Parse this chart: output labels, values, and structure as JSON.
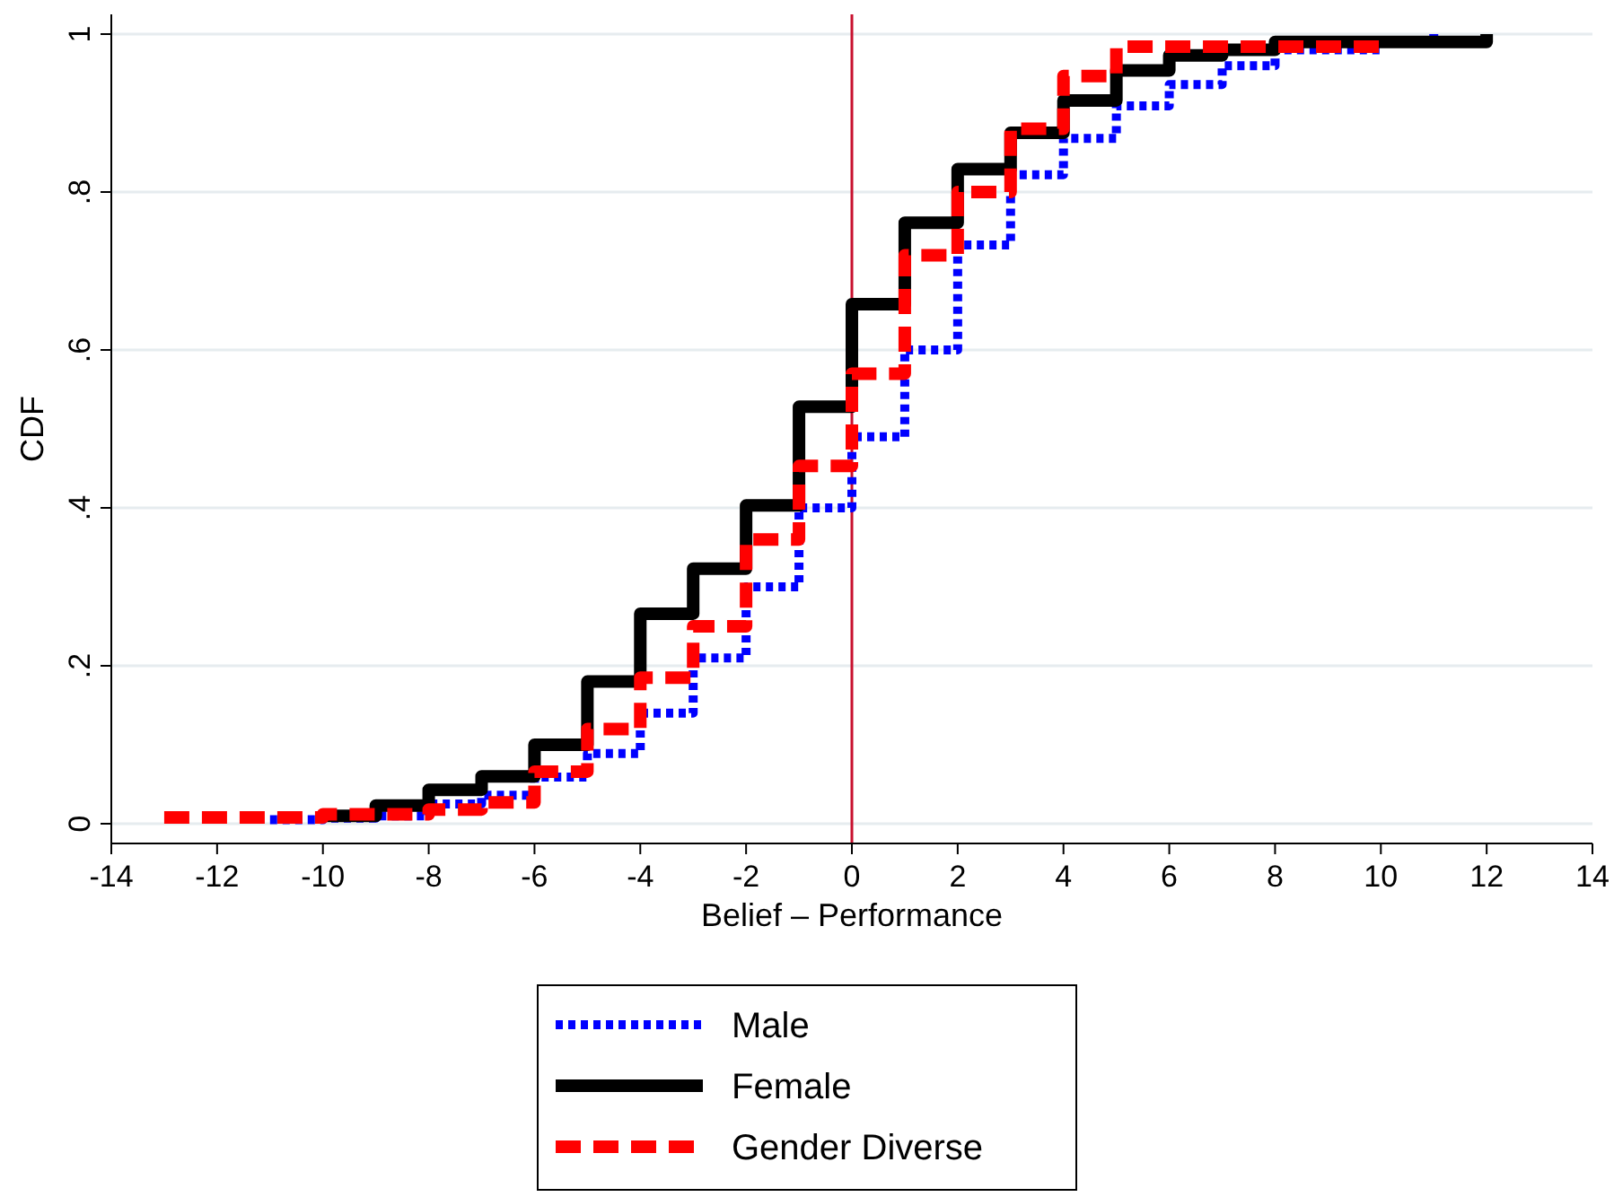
{
  "chart_data": {
    "type": "step",
    "xlabel": "Belief – Performance",
    "ylabel": "CDF",
    "xlim": [
      -14,
      14
    ],
    "ylim": [
      -0.025,
      1.025
    ],
    "xticks": [
      -14,
      -12,
      -10,
      -8,
      -6,
      -4,
      -2,
      0,
      2,
      4,
      6,
      8,
      10,
      12,
      14
    ],
    "yticks": [
      0,
      {
        "value": 0.2,
        "label": ".2"
      },
      {
        "value": 0.4,
        "label": ".4"
      },
      {
        "value": 0.6,
        "label": ".6"
      },
      {
        "value": 0.8,
        "label": ".8"
      },
      1
    ],
    "grid": "y",
    "legend": "bottom",
    "marker": "none",
    "ref_lines": [
      {
        "axis": "x",
        "value": 0,
        "color": "#c8102e"
      }
    ],
    "series": [
      {
        "name": "Male",
        "color": "#0000ff",
        "line_style": "dotted",
        "x": [
          -11,
          -10,
          -9,
          -8,
          -7,
          -6,
          -5,
          -4,
          -3,
          -2,
          -1,
          0,
          1,
          2,
          3,
          4,
          5,
          6,
          7,
          8,
          10,
          11
        ],
        "values": [
          0.005,
          0.007,
          0.01,
          0.025,
          0.036,
          0.059,
          0.089,
          0.14,
          0.21,
          0.3,
          0.4,
          0.49,
          0.6,
          0.733,
          0.822,
          0.868,
          0.909,
          0.936,
          0.96,
          0.98,
          0.99,
          1.0
        ]
      },
      {
        "name": "Female",
        "color": "#000000",
        "line_style": "solid",
        "x": [
          -10,
          -9,
          -8,
          -7,
          -6,
          -5,
          -4,
          -3,
          -2,
          -1,
          0,
          1,
          2,
          3,
          4,
          5,
          6,
          7,
          8,
          12
        ],
        "values": [
          0.01,
          0.023,
          0.043,
          0.06,
          0.1,
          0.18,
          0.266,
          0.323,
          0.403,
          0.528,
          0.658,
          0.761,
          0.829,
          0.875,
          0.916,
          0.954,
          0.973,
          0.98,
          0.99,
          1.0
        ]
      },
      {
        "name": "Gender Diverse",
        "color": "#ff0000",
        "line_style": "dashed",
        "x": [
          -13,
          -10,
          -8,
          -7,
          -6,
          -5,
          -4,
          -3,
          -2,
          -1,
          0,
          1,
          2,
          3,
          4,
          5,
          10
        ],
        "values": [
          0.008,
          0.012,
          0.018,
          0.027,
          0.066,
          0.12,
          0.185,
          0.25,
          0.36,
          0.453,
          0.57,
          0.72,
          0.8,
          0.88,
          0.947,
          0.984,
          0.99
        ]
      }
    ]
  }
}
